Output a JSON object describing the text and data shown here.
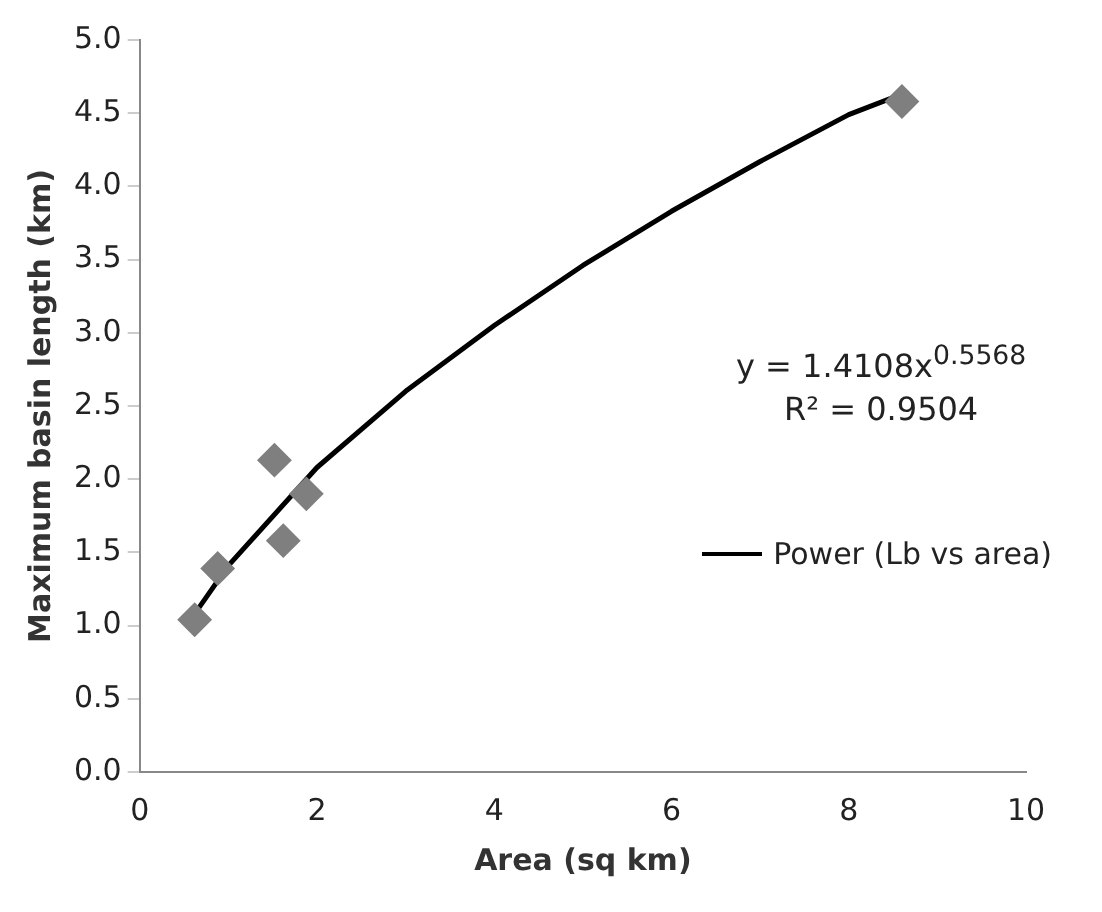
{
  "chart_data": {
    "type": "scatter",
    "xlabel": "Area (sq km)",
    "ylabel": "Maximum basin length (km)",
    "xlim": [
      0,
      10
    ],
    "xticks": [
      0,
      2,
      4,
      6,
      8,
      10
    ],
    "ylim": [
      0,
      5
    ],
    "yticks": [
      {
        "value": 0,
        "label": "0.0"
      },
      {
        "value": 0.5,
        "label": "0.5"
      },
      {
        "value": 1,
        "label": "1.0"
      },
      {
        "value": 1.5,
        "label": "1.5"
      },
      {
        "value": 2,
        "label": "2.0"
      },
      {
        "value": 2.5,
        "label": "2.5"
      },
      {
        "value": 3,
        "label": "3.0"
      },
      {
        "value": 3.5,
        "label": "3.5"
      },
      {
        "value": 4,
        "label": "4.0"
      },
      {
        "value": 4.5,
        "label": "4.5"
      },
      {
        "value": 5,
        "label": "5.0"
      }
    ],
    "grid": false,
    "legend": "right",
    "marker": "diamond",
    "series": [
      {
        "color": "#7f7f7f",
        "x": [
          0.62,
          0.88,
          1.52,
          1.62,
          1.88,
          8.6
        ],
        "values": [
          1.04,
          1.39,
          2.13,
          1.58,
          1.9,
          4.58
        ]
      },
      {
        "type": "line",
        "name": "Power (Lb vs area)",
        "color": "#000000",
        "marker": "none",
        "line_style": "solid",
        "x": [
          0.62,
          1,
          2,
          3,
          4,
          5,
          6,
          7,
          8,
          8.6
        ],
        "values": [
          1.08,
          1.41,
          2.08,
          2.6,
          3.05,
          3.46,
          3.83,
          4.17,
          4.49,
          4.63
        ]
      }
    ],
    "annotations": [
      "y = 1.4108x$^{0.5568}$",
      "R² = 0.9504"
    ]
  }
}
